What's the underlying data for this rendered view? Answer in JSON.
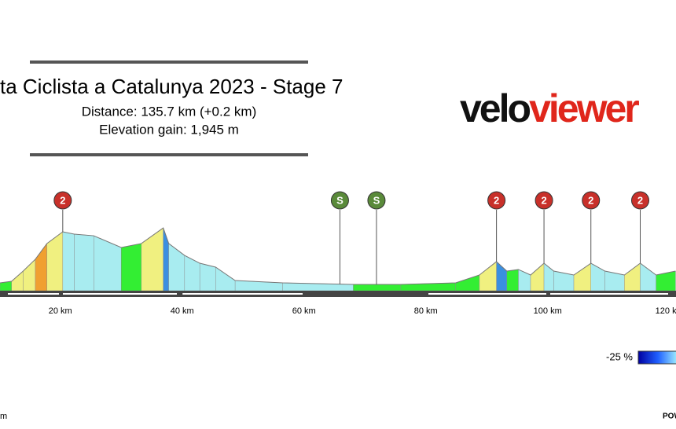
{
  "chart_data": {
    "type": "area",
    "title": "ta Ciclista a Catalunya 2023 - Stage 7",
    "subtitle_lines": [
      "Distance: 135.7 km (+0.2 km)",
      "Elevation gain: 1,945 m"
    ],
    "logo": [
      "velo",
      "viewer"
    ],
    "x": [
      10.1,
      12,
      13.9,
      15.9,
      17.8,
      20.4,
      22.3,
      25.5,
      30,
      33.3,
      36.9,
      37.8,
      40.4,
      42.9,
      45.5,
      48.7,
      56.5,
      68.1,
      75.9,
      84.9,
      88.8,
      91.6,
      93.3,
      95.2,
      97.2,
      99.4,
      101,
      104.3,
      107.1,
      109.4,
      112.6,
      115.2,
      117.8,
      121
    ],
    "y": [
      77,
      92,
      192,
      308,
      462,
      577,
      554,
      538,
      423,
      462,
      615,
      462,
      346,
      269,
      231,
      100,
      77,
      62,
      62,
      77,
      154,
      285,
      192,
      208,
      154,
      269,
      192,
      154,
      269,
      192,
      154,
      269,
      154,
      192
    ],
    "xlim": [
      10.1,
      121.07
    ],
    "ylim": [
      0,
      1000
    ],
    "xticks": [
      {
        "value": 20,
        "label": "20 km"
      },
      {
        "value": 40,
        "label": "40 km"
      },
      {
        "value": 60,
        "label": "60 km"
      },
      {
        "value": 80,
        "label": "80 km"
      },
      {
        "value": 100,
        "label": "100 km"
      },
      {
        "value": 120,
        "label": "120 km"
      }
    ],
    "markers": [
      {
        "x": 20.4,
        "label": "2"
      },
      {
        "x": 65.9,
        "label": "S"
      },
      {
        "x": 71.9,
        "label": "S"
      },
      {
        "x": 91.6,
        "label": "2"
      },
      {
        "x": 99.4,
        "label": "2"
      },
      {
        "x": 107.1,
        "label": "2"
      },
      {
        "x": 115.2,
        "label": "2"
      }
    ],
    "gradient_legend_label": "-25 %"
  },
  "footer": {
    "left": "m",
    "right": "POW"
  }
}
